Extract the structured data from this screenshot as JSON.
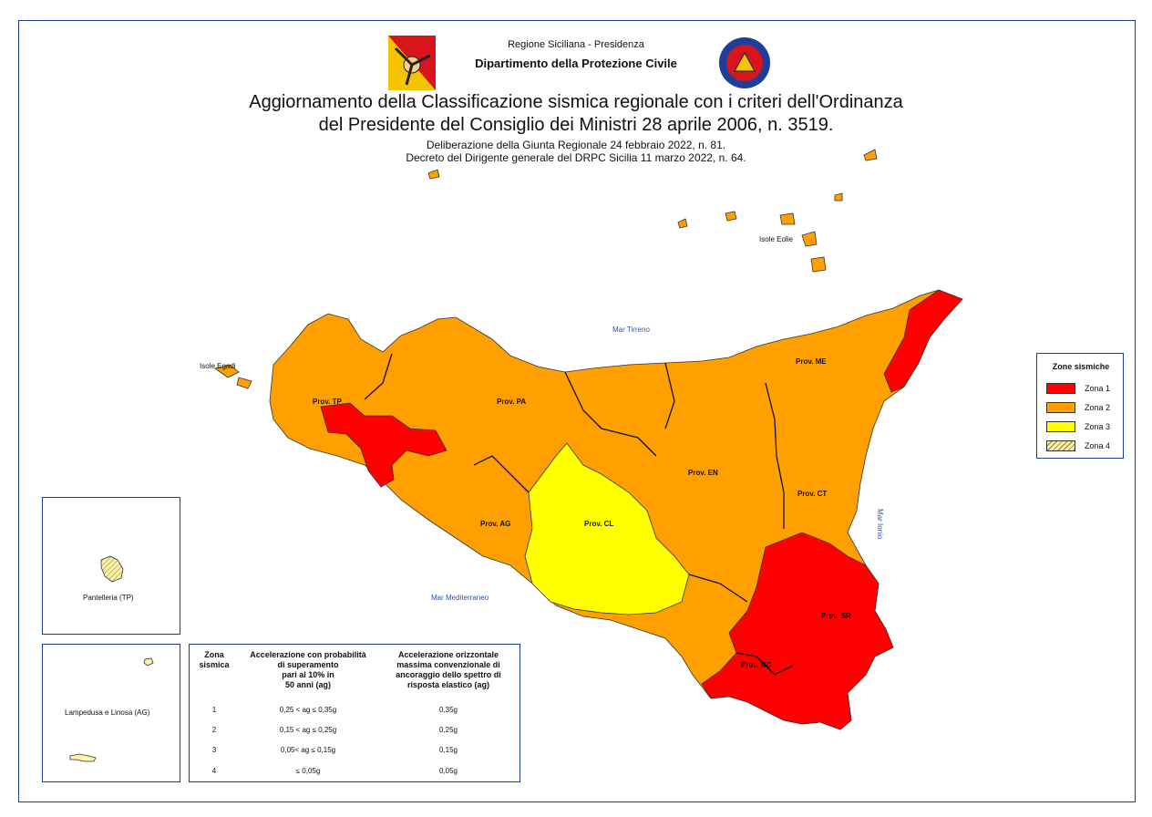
{
  "header": {
    "region_line": "Regione Siciliana - Presidenza",
    "department": "Dipartimento della Protezione Civile",
    "title_line1": "Aggiornamento della Classificazione sismica regionale con i criteri dell'Ordinanza",
    "title_line2": "del Presidente del Consiglio dei Ministri 28 aprile 2006, n. 3519.",
    "sub_line1": "Deliberazione della Giunta Regionale 24 febbraio 2022, n. 81.",
    "sub_line2": "Decreto del Dirigente generale del DRPC Sicilia 11 marzo 2022, n. 64."
  },
  "map": {
    "seas": {
      "tirreno": "Mar Tirreno",
      "ionio": "Mar Ionio",
      "mediterraneo": "Mar Mediterraneo"
    },
    "islands": {
      "egadi": "Isole Egadi",
      "eolie": "Isole Eolie"
    },
    "provinces": {
      "tp": "Prov. TP",
      "pa": "Prov. PA",
      "me": "Prov. ME",
      "en": "Prov. EN",
      "ct": "Prov. CT",
      "ag": "Prov. AG",
      "cl": "Prov. CL",
      "sr": "Prov. SR",
      "rg": "Prov. RG"
    },
    "insets": {
      "pantelleria": "Pantelleria (TP)",
      "lampedusa": "Lampedusa e Linosa (AG)"
    }
  },
  "legend": {
    "title": "Zone sismiche",
    "items": [
      {
        "label": "Zona 1",
        "color": "#ff0000"
      },
      {
        "label": "Zona 2",
        "color": "#ff9f00"
      },
      {
        "label": "Zona 3",
        "color": "#ffff00"
      },
      {
        "label": "Zona 4",
        "color": "#fff2a8"
      }
    ]
  },
  "table": {
    "headers": [
      "Zona sismica",
      "Accelerazione con probabilità di superamento pari al 10% in 50 anni (ag)",
      "Accelerazione orizzontale massima convenzionale di ancoraggio dello spettro di risposta elastico (ag)"
    ],
    "header_lines": [
      [
        "Zona",
        "sismica"
      ],
      [
        "Accelerazione con probabilità",
        "di superamento",
        "pari al 10% in",
        "50 anni (ag)"
      ],
      [
        "Accelerazione orizzontale",
        "massima convenzionale di",
        "ancoraggio dello spettro di",
        "risposta elastico (ag)"
      ]
    ],
    "rows": [
      [
        "1",
        "0,25 < ag ≤ 0,35g",
        "0,35g"
      ],
      [
        "2",
        "0,15 < ag ≤ 0,25g",
        "0,25g"
      ],
      [
        "3",
        "0,05< ag ≤ 0,15g",
        "0,15g"
      ],
      [
        "4",
        "≤ 0,05g",
        "0,05g"
      ]
    ]
  },
  "colors": {
    "zona1": "#ff0000",
    "zona2": "#ff9f00",
    "zona3": "#ffff00",
    "zona4": "#fff2a8",
    "border": "#1f3f8a",
    "sea_text": "#2456b5"
  }
}
